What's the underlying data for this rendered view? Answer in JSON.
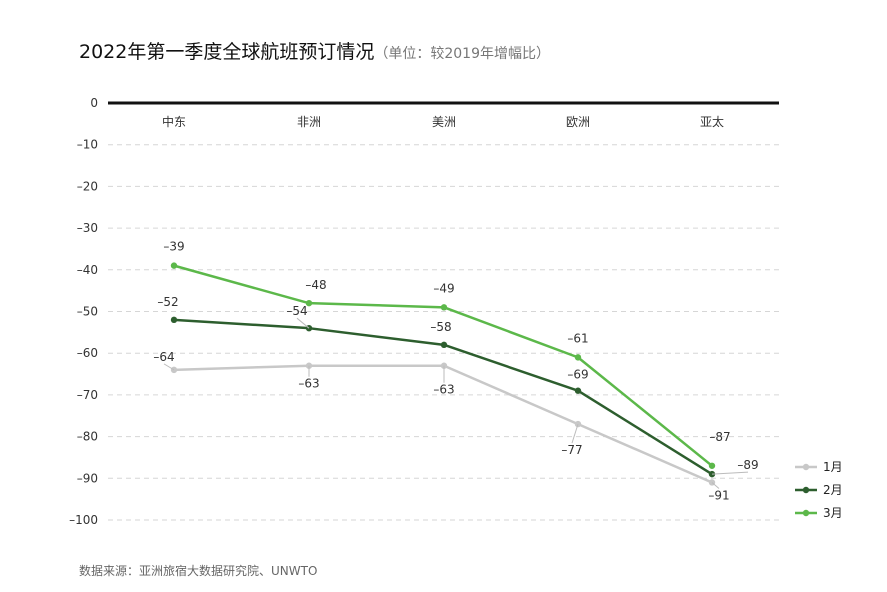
{
  "header": {
    "title": "2022年第一季度全球航班预订情况",
    "subtitle": "（单位：较2019年增幅比）"
  },
  "footer": {
    "source": "数据来源：亚洲旅宿大数据研究院、UNWTO"
  },
  "chart_data": {
    "type": "line",
    "categories": [
      "中东",
      "非洲",
      "美洲",
      "欧洲",
      "亚太"
    ],
    "ylim": [
      -100,
      0
    ],
    "yticks": [
      0,
      -10,
      -20,
      -30,
      -40,
      -50,
      -60,
      -70,
      -80,
      -90,
      -100
    ],
    "ytick_labels": [
      "0",
      "–10",
      "–20",
      "–30",
      "–40",
      "–50",
      "–60",
      "–70",
      "–80",
      "–90",
      "–100"
    ],
    "grid": true,
    "legend_position": "bottom-right",
    "series": [
      {
        "name": "1月",
        "color": "#c8c8c8",
        "values": [
          -64,
          -63,
          -63,
          -77,
          -91
        ],
        "labels": [
          "–64",
          "–63",
          "–63",
          "–77",
          "–91"
        ]
      },
      {
        "name": "2月",
        "color": "#2d5e2e",
        "values": [
          -52,
          -54,
          -58,
          -69,
          -89
        ],
        "labels": [
          "–52",
          "–54",
          "–58",
          "–69",
          "–89"
        ]
      },
      {
        "name": "3月",
        "color": "#5cb84a",
        "values": [
          -39,
          -48,
          -49,
          -61,
          -87
        ],
        "labels": [
          "–39",
          "–48",
          "–49",
          "–61",
          "–87"
        ]
      }
    ]
  }
}
